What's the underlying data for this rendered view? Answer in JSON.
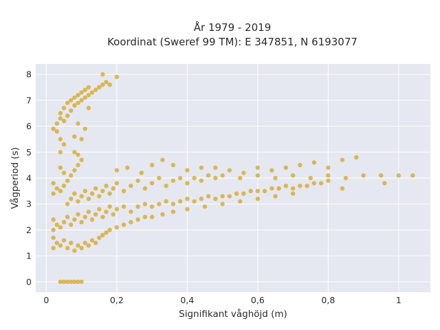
{
  "chart_data": {
    "type": "scatter",
    "title_lines": [
      "År 1979 - 2019",
      "Koordinat (Sweref 99 TM): E 347851, N 6193077"
    ],
    "xlabel": "Signifikant våghöjd (m)",
    "ylabel": "Vågperiod (s)",
    "xlim": [
      -0.03,
      1.09
    ],
    "ylim": [
      -0.4,
      8.4
    ],
    "xticks": [
      0,
      0.2,
      0.4,
      0.6,
      0.8,
      1.0
    ],
    "xtick_labels": [
      "0",
      "0,2",
      "0,4",
      "0,6",
      "0,8",
      "1"
    ],
    "yticks": [
      0,
      1,
      2,
      3,
      4,
      5,
      6,
      7,
      8
    ],
    "ytick_labels": [
      "0",
      "1",
      "2",
      "3",
      "4",
      "5",
      "6",
      "7",
      "8"
    ],
    "grid": true,
    "marker_color": "#d4a521",
    "marker_opacity": 0.75,
    "background_color": "#e5e8f0",
    "points": [
      [
        0.04,
        0
      ],
      [
        0.05,
        0
      ],
      [
        0.06,
        0
      ],
      [
        0.07,
        0
      ],
      [
        0.08,
        0
      ],
      [
        0.09,
        0
      ],
      [
        0.1,
        0
      ],
      [
        0.02,
        1.3
      ],
      [
        0.03,
        1.5
      ],
      [
        0.02,
        1.7
      ],
      [
        0.04,
        1.4
      ],
      [
        0.05,
        1.6
      ],
      [
        0.06,
        1.3
      ],
      [
        0.07,
        1.5
      ],
      [
        0.08,
        1.2
      ],
      [
        0.09,
        1.4
      ],
      [
        0.1,
        1.3
      ],
      [
        0.11,
        1.5
      ],
      [
        0.12,
        1.4
      ],
      [
        0.13,
        1.6
      ],
      [
        0.14,
        1.5
      ],
      [
        0.15,
        1.7
      ],
      [
        0.16,
        1.8
      ],
      [
        0.17,
        1.9
      ],
      [
        0.18,
        2.0
      ],
      [
        0.2,
        2.1
      ],
      [
        0.22,
        2.2
      ],
      [
        0.24,
        2.3
      ],
      [
        0.26,
        2.4
      ],
      [
        0.28,
        2.5
      ],
      [
        0.3,
        2.5
      ],
      [
        0.33,
        2.6
      ],
      [
        0.36,
        2.7
      ],
      [
        0.4,
        2.8
      ],
      [
        0.45,
        2.9
      ],
      [
        0.5,
        3.0
      ],
      [
        0.55,
        3.1
      ],
      [
        0.6,
        3.2
      ],
      [
        0.65,
        3.3
      ],
      [
        0.7,
        3.4
      ],
      [
        0.02,
        2.0
      ],
      [
        0.03,
        2.2
      ],
      [
        0.02,
        2.4
      ],
      [
        0.04,
        2.1
      ],
      [
        0.05,
        2.3
      ],
      [
        0.06,
        2.5
      ],
      [
        0.07,
        2.2
      ],
      [
        0.08,
        2.4
      ],
      [
        0.09,
        2.6
      ],
      [
        0.1,
        2.3
      ],
      [
        0.11,
        2.5
      ],
      [
        0.12,
        2.7
      ],
      [
        0.13,
        2.4
      ],
      [
        0.14,
        2.6
      ],
      [
        0.15,
        2.8
      ],
      [
        0.16,
        2.5
      ],
      [
        0.17,
        2.7
      ],
      [
        0.18,
        2.9
      ],
      [
        0.19,
        2.6
      ],
      [
        0.2,
        2.8
      ],
      [
        0.22,
        2.9
      ],
      [
        0.24,
        2.7
      ],
      [
        0.26,
        2.9
      ],
      [
        0.28,
        3.0
      ],
      [
        0.3,
        2.9
      ],
      [
        0.32,
        3.0
      ],
      [
        0.34,
        3.1
      ],
      [
        0.36,
        3.0
      ],
      [
        0.38,
        3.1
      ],
      [
        0.4,
        3.2
      ],
      [
        0.42,
        3.1
      ],
      [
        0.44,
        3.2
      ],
      [
        0.46,
        3.3
      ],
      [
        0.48,
        3.2
      ],
      [
        0.5,
        3.3
      ],
      [
        0.52,
        3.3
      ],
      [
        0.54,
        3.4
      ],
      [
        0.56,
        3.4
      ],
      [
        0.58,
        3.5
      ],
      [
        0.6,
        3.5
      ],
      [
        0.62,
        3.5
      ],
      [
        0.64,
        3.6
      ],
      [
        0.66,
        3.6
      ],
      [
        0.68,
        3.7
      ],
      [
        0.7,
        3.6
      ],
      [
        0.72,
        3.7
      ],
      [
        0.74,
        3.7
      ],
      [
        0.76,
        3.8
      ],
      [
        0.78,
        3.8
      ],
      [
        0.8,
        3.9
      ],
      [
        0.06,
        3.0
      ],
      [
        0.07,
        3.2
      ],
      [
        0.08,
        3.4
      ],
      [
        0.09,
        3.1
      ],
      [
        0.1,
        3.3
      ],
      [
        0.11,
        3.5
      ],
      [
        0.12,
        3.2
      ],
      [
        0.13,
        3.4
      ],
      [
        0.14,
        3.6
      ],
      [
        0.15,
        3.3
      ],
      [
        0.16,
        3.5
      ],
      [
        0.17,
        3.7
      ],
      [
        0.18,
        3.4
      ],
      [
        0.19,
        3.6
      ],
      [
        0.2,
        3.8
      ],
      [
        0.22,
        3.5
      ],
      [
        0.24,
        3.7
      ],
      [
        0.26,
        3.9
      ],
      [
        0.28,
        3.6
      ],
      [
        0.3,
        3.8
      ],
      [
        0.32,
        4.0
      ],
      [
        0.34,
        3.7
      ],
      [
        0.36,
        3.9
      ],
      [
        0.38,
        4.0
      ],
      [
        0.4,
        3.8
      ],
      [
        0.42,
        4.0
      ],
      [
        0.44,
        3.9
      ],
      [
        0.46,
        4.1
      ],
      [
        0.48,
        4.0
      ],
      [
        0.5,
        4.1
      ],
      [
        0.55,
        4.0
      ],
      [
        0.6,
        4.1
      ],
      [
        0.65,
        4.0
      ],
      [
        0.7,
        4.1
      ],
      [
        0.75,
        4.0
      ],
      [
        0.8,
        4.1
      ],
      [
        0.85,
        4.0
      ],
      [
        0.9,
        4.1
      ],
      [
        0.95,
        4.1
      ],
      [
        1.0,
        4.1
      ],
      [
        1.04,
        4.1
      ],
      [
        0.2,
        4.3
      ],
      [
        0.23,
        4.4
      ],
      [
        0.27,
        4.2
      ],
      [
        0.3,
        4.5
      ],
      [
        0.33,
        4.7
      ],
      [
        0.36,
        4.5
      ],
      [
        0.4,
        4.3
      ],
      [
        0.44,
        4.4
      ],
      [
        0.48,
        4.4
      ],
      [
        0.52,
        4.3
      ],
      [
        0.56,
        4.2
      ],
      [
        0.6,
        4.4
      ],
      [
        0.64,
        4.3
      ],
      [
        0.68,
        4.4
      ],
      [
        0.72,
        4.5
      ],
      [
        0.76,
        4.6
      ],
      [
        0.8,
        4.4
      ],
      [
        0.84,
        4.7
      ],
      [
        0.88,
        4.8
      ],
      [
        0.84,
        3.6
      ],
      [
        0.96,
        3.8
      ],
      [
        0.02,
        3.4
      ],
      [
        0.03,
        3.6
      ],
      [
        0.02,
        3.8
      ],
      [
        0.04,
        3.5
      ],
      [
        0.05,
        3.7
      ],
      [
        0.06,
        3.9
      ],
      [
        0.07,
        4.1
      ],
      [
        0.08,
        4.3
      ],
      [
        0.09,
        4.5
      ],
      [
        0.1,
        4.7
      ],
      [
        0.08,
        5.0
      ],
      [
        0.09,
        4.9
      ],
      [
        0.04,
        5.0
      ],
      [
        0.04,
        4.4
      ],
      [
        0.05,
        4.2
      ],
      [
        0.02,
        5.9
      ],
      [
        0.03,
        6.1
      ],
      [
        0.03,
        5.8
      ],
      [
        0.04,
        6.3
      ],
      [
        0.04,
        6.5
      ],
      [
        0.05,
        6.2
      ],
      [
        0.05,
        6.7
      ],
      [
        0.06,
        6.4
      ],
      [
        0.06,
        6.9
      ],
      [
        0.07,
        6.6
      ],
      [
        0.07,
        7.0
      ],
      [
        0.08,
        6.8
      ],
      [
        0.08,
        7.1
      ],
      [
        0.09,
        6.9
      ],
      [
        0.09,
        7.2
      ],
      [
        0.1,
        7.0
      ],
      [
        0.1,
        7.3
      ],
      [
        0.11,
        7.1
      ],
      [
        0.11,
        7.4
      ],
      [
        0.12,
        7.2
      ],
      [
        0.12,
        7.5
      ],
      [
        0.13,
        7.3
      ],
      [
        0.14,
        7.4
      ],
      [
        0.15,
        7.5
      ],
      [
        0.16,
        7.6
      ],
      [
        0.17,
        7.7
      ],
      [
        0.18,
        7.6
      ],
      [
        0.16,
        8.0
      ],
      [
        0.2,
        7.9
      ],
      [
        0.04,
        5.5
      ],
      [
        0.05,
        5.3
      ],
      [
        0.08,
        5.6
      ],
      [
        0.1,
        5.5
      ],
      [
        0.11,
        5.9
      ],
      [
        0.09,
        6.1
      ],
      [
        0.12,
        6.7
      ]
    ]
  }
}
